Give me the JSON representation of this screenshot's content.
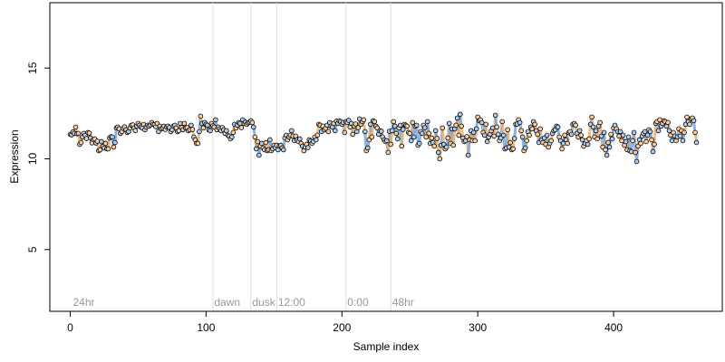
{
  "chart_data": {
    "type": "scatter",
    "title": "",
    "xlabel": "Sample index",
    "ylabel": "Expression",
    "xlim": [
      -15,
      480
    ],
    "ylim": [
      1.6,
      18.6
    ],
    "x_ticks": [
      0,
      100,
      200,
      300,
      400
    ],
    "y_ticks": [
      5,
      10,
      15
    ],
    "grid": false,
    "legend": "none",
    "separators": [
      105,
      133,
      152,
      203,
      236
    ],
    "section_labels": [
      {
        "text": "24hr",
        "x": 2
      },
      {
        "text": "dawn",
        "x": 106
      },
      {
        "text": "dusk",
        "x": 134
      },
      {
        "text": "12:00",
        "x": 153
      },
      {
        "text": "0:00",
        "x": 204
      },
      {
        "text": "48hr",
        "x": 237
      }
    ],
    "colors": {
      "point_outline": "#000000",
      "fill_light": "#ffcc99",
      "fill_dark": "#aaccee",
      "line_light": "#e8b070",
      "line_dark": "#7aa6dd",
      "separator": "#dddddd",
      "section_label": "#999999"
    },
    "fill_pattern": "alternating light/dark by sample",
    "series": [
      {
        "x": [
          0,
          1,
          2,
          3,
          4,
          5,
          6,
          7,
          8,
          9,
          10,
          11,
          12,
          13,
          14,
          15,
          16,
          17,
          18,
          19,
          20,
          21,
          22,
          23,
          24,
          25,
          26,
          27,
          28,
          29,
          30,
          31,
          32,
          33,
          34,
          35,
          36,
          37,
          38,
          39,
          40,
          41,
          42,
          43,
          44,
          45,
          46,
          47,
          48,
          49,
          50,
          51,
          52,
          53,
          54,
          55,
          56,
          57,
          58,
          59,
          60,
          61,
          62,
          63,
          64,
          65,
          66,
          67,
          68,
          69,
          70,
          71,
          72,
          73,
          74,
          75,
          76,
          77,
          78,
          79,
          80,
          81,
          82,
          83,
          84,
          85,
          86,
          87,
          88,
          89,
          90,
          91,
          92,
          93,
          94,
          95,
          96,
          97,
          98,
          99,
          100,
          101,
          102,
          103,
          104,
          105,
          106,
          107,
          108,
          109,
          110,
          111,
          112,
          113,
          114,
          115,
          116,
          117,
          118,
          119,
          120,
          121,
          122,
          123,
          124,
          125,
          126,
          127,
          128,
          129,
          130,
          131,
          132,
          133,
          134,
          135,
          136,
          137,
          138,
          139,
          140,
          141,
          142,
          143,
          144,
          145,
          146,
          147,
          148,
          149,
          150,
          151,
          152,
          153,
          154,
          155,
          156,
          157,
          158,
          159,
          160,
          161,
          162,
          163,
          164,
          165,
          166,
          167,
          168,
          169,
          170,
          171,
          172,
          173,
          174,
          175,
          176,
          177,
          178,
          179,
          180,
          181,
          182,
          183,
          184,
          185,
          186,
          187,
          188,
          189,
          190,
          191,
          192,
          193,
          194,
          195,
          196,
          197,
          198,
          199,
          200,
          201,
          202,
          203,
          204,
          205,
          206,
          207,
          208,
          209,
          210,
          211,
          212,
          213,
          214,
          215,
          216,
          217,
          218,
          219,
          220,
          221,
          222,
          223,
          224,
          225,
          226,
          227,
          228,
          229,
          230,
          231,
          232,
          233,
          234,
          235,
          236,
          237,
          238,
          239,
          240,
          241,
          242,
          243,
          244,
          245,
          246,
          247,
          248,
          249,
          250,
          251,
          252,
          253,
          254,
          255,
          256,
          257,
          258,
          259,
          260,
          261,
          262,
          263,
          264,
          265,
          266,
          267,
          268,
          269,
          270,
          271,
          272,
          273,
          274,
          275,
          276,
          277,
          278,
          279,
          280,
          281,
          282,
          283,
          284,
          285,
          286,
          287,
          288,
          289,
          290,
          291,
          292,
          293,
          294,
          295,
          296,
          297,
          298,
          299,
          300,
          301,
          302,
          303,
          304,
          305,
          306,
          307,
          308,
          309,
          310,
          311,
          312,
          313,
          314,
          315,
          316,
          317,
          318,
          319,
          320,
          321,
          322,
          323,
          324,
          325,
          326,
          327,
          328,
          329,
          330,
          331,
          332,
          333,
          334,
          335,
          336,
          337,
          338,
          339,
          340,
          341,
          342,
          343,
          344,
          345,
          346,
          347,
          348,
          349,
          350,
          351,
          352,
          353,
          354,
          355,
          356,
          357,
          358,
          359,
          360,
          361,
          362,
          363,
          364,
          365,
          366,
          367,
          368,
          369,
          370,
          371,
          372,
          373,
          374,
          375,
          376,
          377,
          378,
          379,
          380,
          381,
          382,
          383,
          384,
          385,
          386,
          387,
          388,
          389,
          390,
          391,
          392,
          393,
          394,
          395,
          396,
          397,
          398,
          399,
          400,
          401,
          402,
          403,
          404,
          405,
          406,
          407,
          408,
          409,
          410,
          411,
          412,
          413,
          414,
          415,
          416,
          417,
          418,
          419,
          420,
          421,
          422,
          423,
          424,
          425,
          426,
          427,
          428,
          429,
          430,
          431,
          432,
          433,
          434,
          435,
          436,
          437,
          438,
          439,
          440,
          441,
          442,
          443,
          444,
          445,
          446,
          447,
          448,
          449,
          450,
          451,
          452,
          453,
          454,
          455,
          456,
          457,
          458,
          459,
          460,
          461
        ],
        "y": [
          11.35,
          11.32,
          11.48,
          11.4,
          11.75,
          11.38,
          11.4,
          10.8,
          10.9,
          11.2,
          11.4,
          11.3,
          11.12,
          11.45,
          11.42,
          11.15,
          10.88,
          11.05,
          11.1,
          10.87,
          10.97,
          10.45,
          10.5,
          10.95,
          10.68,
          10.6,
          10.85,
          10.55,
          10.55,
          11.15,
          11.22,
          11.2,
          10.65,
          10.9,
          11.7,
          11.75,
          11.65,
          11.4,
          11.5,
          11.68,
          11.76,
          11.6,
          11.45,
          11.5,
          11.7,
          11.85,
          11.87,
          11.7,
          11.55,
          11.8,
          11.95,
          11.85,
          11.75,
          11.7,
          11.9,
          11.6,
          11.75,
          11.85,
          11.8,
          11.87,
          12.0,
          11.9,
          11.88,
          11.77,
          11.95,
          11.5,
          11.8,
          11.65,
          11.7,
          11.8,
          11.62,
          11.75,
          11.8,
          11.72,
          11.5,
          11.6,
          11.8,
          11.85,
          11.7,
          11.5,
          11.55,
          11.95,
          11.72,
          11.6,
          11.95,
          11.7,
          11.72,
          11.55,
          11.6,
          11.85,
          11.62,
          11.2,
          11.05,
          10.85,
          10.85,
          11.5,
          12.35,
          11.95,
          11.7,
          12.0,
          11.9,
          11.85,
          11.6,
          11.55,
          11.95,
          11.82,
          11.75,
          12.15,
          11.6,
          11.75,
          11.65,
          11.55,
          11.72,
          11.6,
          11.4,
          11.55,
          11.3,
          11.25,
          11.1,
          11.2,
          11.45,
          11.9,
          11.7,
          11.85,
          12.0,
          11.95,
          11.72,
          12.15,
          11.95,
          12.02,
          11.9,
          11.98,
          12.03,
          12.1,
          12.0,
          11.75,
          11.2,
          10.55,
          10.95,
          10.2,
          10.7,
          10.85,
          10.6,
          10.5,
          10.9,
          10.45,
          10.5,
          11.05,
          10.45,
          10.55,
          10.75,
          10.62,
          10.75,
          10.5,
          10.72,
          10.75,
          10.6,
          10.5,
          11.15,
          11.3,
          11.05,
          11.2,
          11.3,
          11.55,
          11.25,
          11.0,
          11.25,
          11.05,
          10.95,
          11.1,
          10.85,
          10.7,
          10.45,
          10.65,
          10.8,
          10.62,
          11.05,
          10.98,
          10.85,
          10.95,
          11.2,
          11.05,
          11.3,
          11.9,
          11.85,
          11.5,
          11.8,
          11.6,
          11.68,
          11.85,
          11.5,
          12.0,
          11.8,
          11.75,
          11.95,
          11.55,
          12.07,
          11.95,
          12.1,
          12.05,
          11.9,
          12.0,
          11.45,
          12.05,
          12.0,
          12.12,
          11.75,
          11.95,
          11.35,
          11.8,
          11.92,
          11.5,
          11.72,
          12.2,
          11.9,
          12.05,
          12.15,
          11.5,
          10.45,
          10.6,
          11.05,
          11.9,
          11.2,
          12.1,
          12.05,
          11.8,
          11.7,
          11.35,
          11.55,
          11.52,
          11.2,
          11.05,
          10.95,
          11.0,
          10.35,
          11.52,
          10.8,
          11.55,
          12.05,
          11.8,
          11.4,
          11.1,
          11.7,
          11.85,
          10.7,
          11.62,
          11.9,
          11.85,
          11.8,
          11.45,
          11.4,
          11.0,
          12.0,
          11.2,
          11.8,
          11.85,
          10.75,
          10.85,
          11.5,
          11.4,
          11.85,
          11.72,
          11.2,
          12.05,
          11.4,
          10.85,
          11.15,
          10.9,
          10.7,
          11.55,
          11.12,
          10.35,
          10.0,
          10.75,
          11.7,
          10.8,
          10.55,
          10.65,
          11.15,
          11.95,
          10.85,
          11.65,
          10.75,
          11.65,
          11.85,
          12.25,
          11.3,
          12.45,
          11.8,
          11.15,
          10.95,
          11.0,
          11.22,
          10.2,
          11.05,
          11.55,
          11.0,
          11.45,
          11.0,
          11.65,
          12.3,
          12.1,
          12.15,
          12.0,
          11.45,
          11.3,
          11.9,
          10.95,
          11.2,
          11.35,
          11.55,
          11.7,
          11.25,
          12.4,
          11.75,
          11.35,
          11.0,
          11.15,
          12.05,
          11.3,
          10.55,
          10.6,
          11.6,
          10.65,
          10.9,
          10.5,
          10.55,
          11.12,
          11.9,
          11.92,
          12.15,
          12.0,
          11.55,
          11.2,
          10.45,
          10.6,
          11.0,
          11.5,
          11.3,
          11.75,
          11.65,
          12.05,
          11.9,
          11.55,
          11.35,
          10.9,
          11.65,
          11.05,
          10.9,
          11.15,
          10.8,
          11.3,
          10.65,
          10.85,
          11.0,
          11.4,
          11.55,
          11.6,
          11.8,
          11.75,
          11.2,
          11.0,
          10.55,
          10.85,
          11.3,
          11.05,
          10.85,
          11.45,
          11.5,
          11.35,
          11.9,
          11.95,
          11.85,
          11.4,
          11.2,
          11.55,
          11.3,
          11.05,
          10.7,
          10.85,
          11.0,
          10.8,
          11.1,
          11.9,
          12.3,
          11.75,
          11.2,
          11.55,
          11.1,
          11.8,
          12.0,
          11.25,
          10.65,
          11.45,
          10.5,
          10.2,
          10.9,
          10.65,
          11.35,
          11.1,
          11.7,
          11.85,
          11.65,
          11.5,
          11.25,
          11.5,
          11.0,
          11.3,
          10.75,
          10.95,
          10.5,
          11.2,
          10.45,
          10.4,
          11.0,
          11.45,
          10.35,
          9.85,
          10.7,
          11.05,
          10.85,
          11.25,
          11.4,
          11.5,
          10.95,
          11.3,
          11.6,
          11.5,
          11.05,
          10.4,
          10.8,
          11.95,
          12.05,
          11.55,
          12.15,
          11.8,
          11.95,
          12.1,
          12.05,
          11.8,
          12.0,
          11.55,
          11.3,
          11.0,
          11.45,
          11.25,
          11.0,
          11.2,
          11.65,
          11.25,
          11.55,
          11.0,
          11.45,
          11.9,
          12.3,
          12.05,
          11.9,
          12.2,
          12.25,
          12.1,
          11.45,
          10.9
        ]
      }
    ]
  }
}
